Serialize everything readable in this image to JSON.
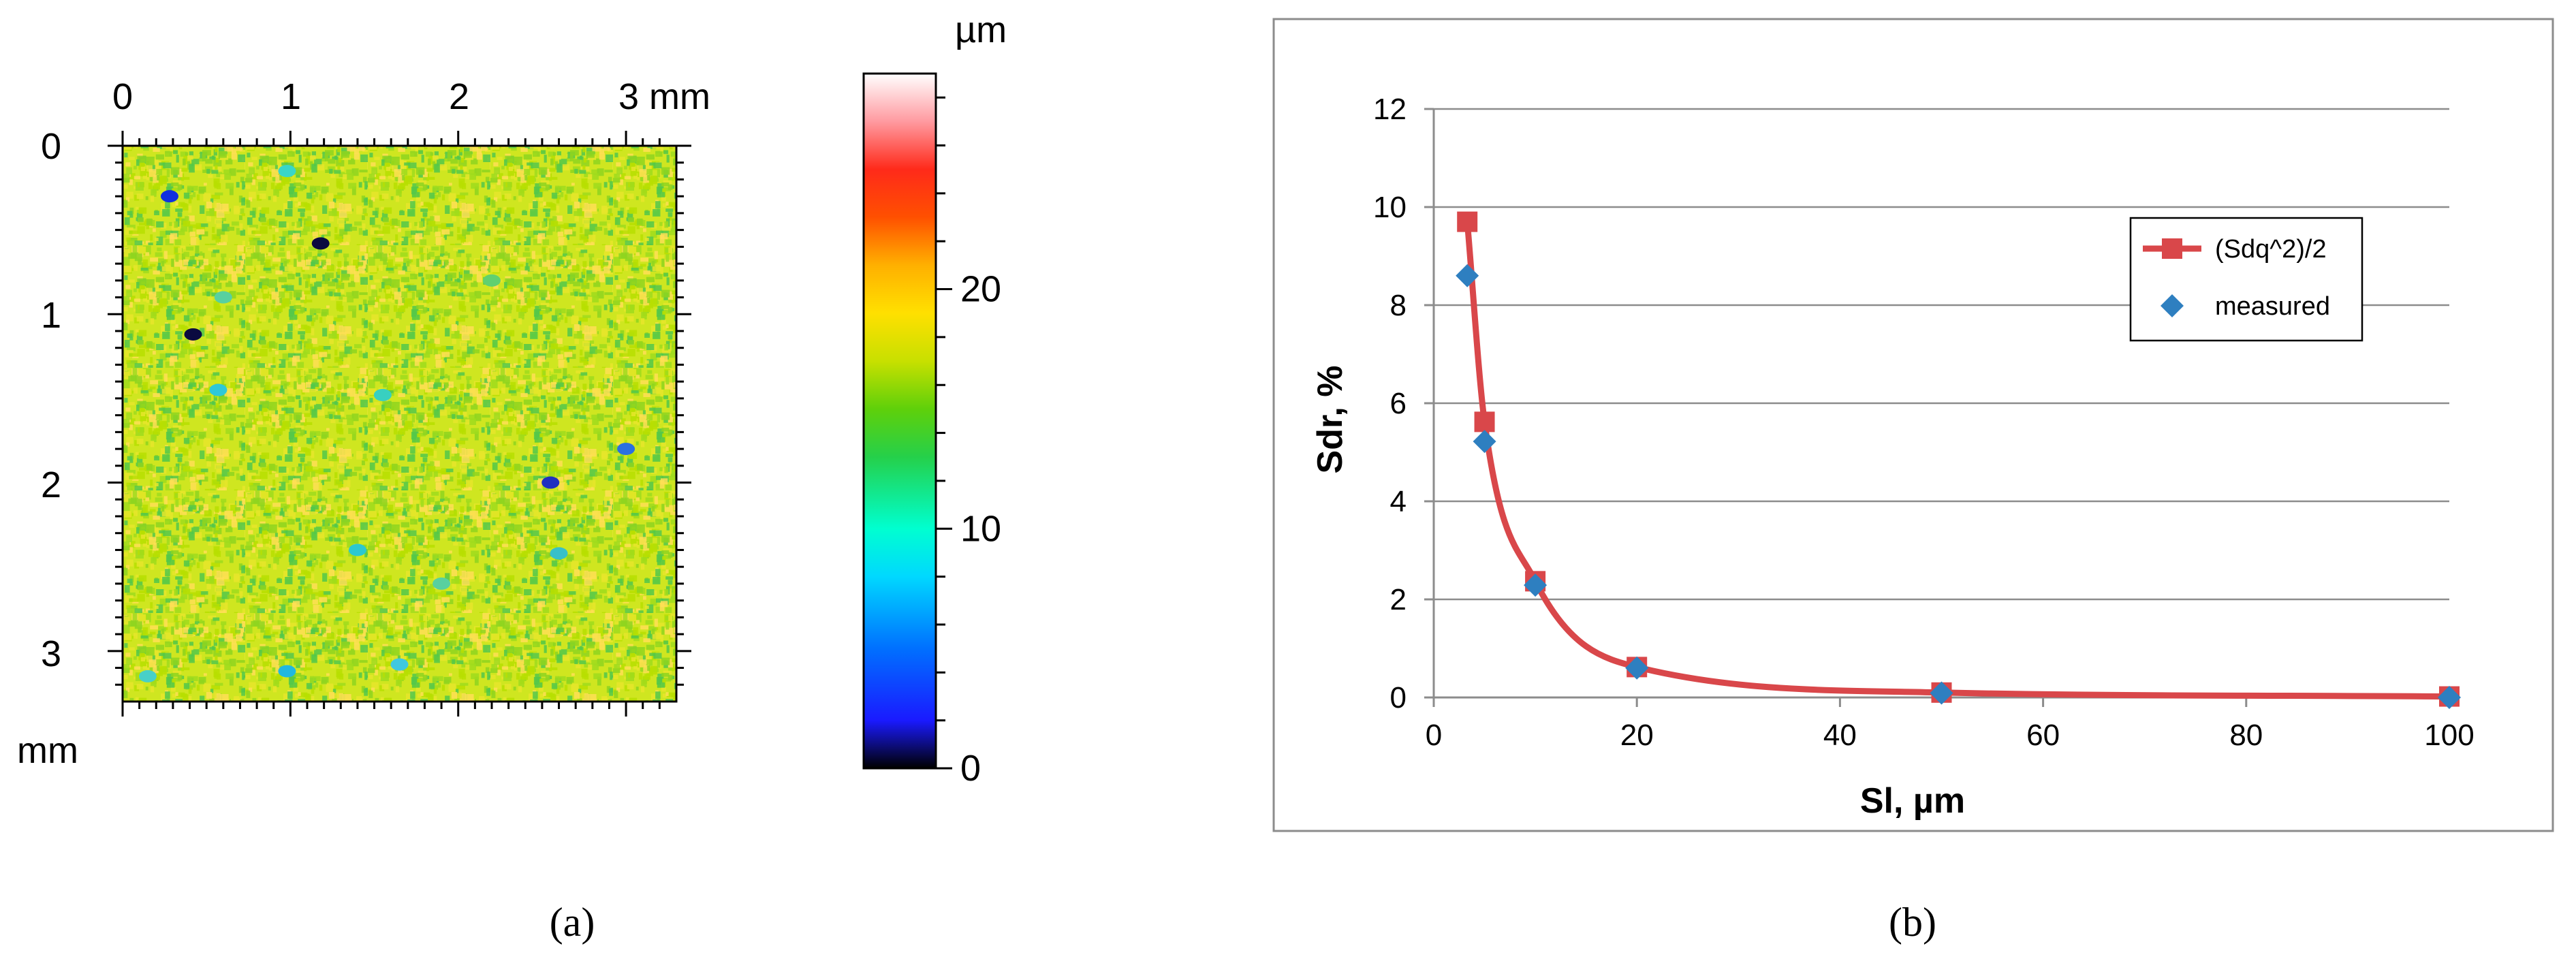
{
  "figure_a": {
    "caption": "(a)",
    "x_ticks": [
      "0",
      "1",
      "2",
      "3 mm"
    ],
    "y_ticks": [
      "0",
      "1",
      "2",
      "3"
    ],
    "y_unit": "mm",
    "colorbar": {
      "unit": "µm",
      "ticks": [
        {
          "value": 0,
          "label": "0"
        },
        {
          "value": 10,
          "label": "10"
        },
        {
          "value": 20,
          "label": "20"
        }
      ],
      "range": [
        0,
        29
      ],
      "stops": [
        {
          "v": 0,
          "color": "#000000"
        },
        {
          "v": 2,
          "color": "#1a1aff"
        },
        {
          "v": 5,
          "color": "#0070ff"
        },
        {
          "v": 8,
          "color": "#00d8ff"
        },
        {
          "v": 10,
          "color": "#00ffd0"
        },
        {
          "v": 13,
          "color": "#25d04a"
        },
        {
          "v": 15,
          "color": "#5fd00a"
        },
        {
          "v": 17,
          "color": "#c8e000"
        },
        {
          "v": 19,
          "color": "#ffe000"
        },
        {
          "v": 21,
          "color": "#ffb000"
        },
        {
          "v": 23,
          "color": "#ff5000"
        },
        {
          "v": 25,
          "color": "#ff2a1a"
        },
        {
          "v": 27,
          "color": "#ff9aa0"
        },
        {
          "v": 29,
          "color": "#ffffff"
        }
      ]
    },
    "map_base_color": "#cfe620",
    "map_colors": [
      "#b8e000",
      "#8ed51e",
      "#e6e62a",
      "#ffe055",
      "#52c84a",
      "#9fdc1c"
    ],
    "map_extent_mm": [
      0,
      3.3
    ]
  },
  "chart_data": {
    "type": "line",
    "caption": "(b)",
    "xlabel": "Sl, µm",
    "ylabel": "Sdr, %",
    "xlim": [
      0,
      100
    ],
    "ylim": [
      0,
      12
    ],
    "x_ticks": [
      0,
      20,
      40,
      60,
      80,
      100
    ],
    "y_ticks": [
      0,
      2,
      4,
      6,
      8,
      10,
      12
    ],
    "grid": "horizontal",
    "legend_position": "right",
    "series": [
      {
        "name": "(Sdq^2)/2",
        "kind": "line-with-markers",
        "marker": "square",
        "color": "#d9474a",
        "x": [
          3.3,
          5,
          10,
          20,
          50,
          100
        ],
        "y": [
          9.7,
          5.62,
          2.37,
          0.62,
          0.1,
          0.02
        ]
      },
      {
        "name": "measured",
        "kind": "markers",
        "marker": "diamond",
        "color": "#2e7fc0",
        "x": [
          3.3,
          5,
          10,
          20,
          50,
          100
        ],
        "y": [
          8.6,
          5.22,
          2.29,
          0.6,
          0.09,
          0.0
        ]
      }
    ]
  }
}
